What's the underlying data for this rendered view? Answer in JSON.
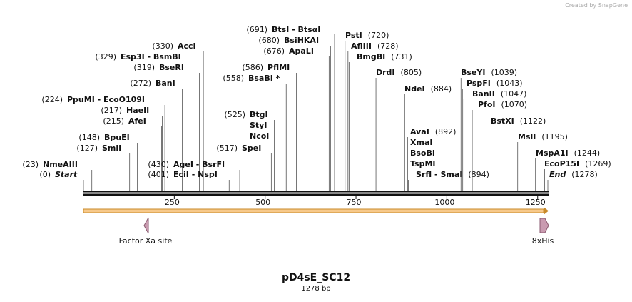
{
  "credit": "Created by SnapGene",
  "enzymes": [
    {
      "lines": [
        "Start"
      ],
      "site": {
        "value": 0,
        "label": "(0)"
      }
    },
    {
      "lines": [
        "NmeAIII"
      ],
      "site": {
        "value": 23,
        "label": "(23)"
      }
    },
    {
      "lines": [
        "SmlI"
      ],
      "site": {
        "value": 127,
        "label": "(127)"
      }
    },
    {
      "lines": [
        "BpuEI"
      ],
      "site": {
        "value": 148,
        "label": "(148)"
      }
    },
    {
      "lines": [
        "AfeI"
      ],
      "site": {
        "value": 215,
        "label": "(215)"
      }
    },
    {
      "lines": [
        "HaeII"
      ],
      "site": {
        "value": 217,
        "label": "(217)"
      }
    },
    {
      "lines": [
        "PpuMI  -  EcoO109I"
      ],
      "site": {
        "value": 224,
        "label": "(224)"
      }
    },
    {
      "lines": [
        "BanI"
      ],
      "site": {
        "value": 272,
        "label": "(272)"
      }
    },
    {
      "lines": [
        "BseRI"
      ],
      "site": {
        "value": 319,
        "label": "(319)"
      }
    },
    {
      "lines": [
        "Esp3I  -  BsmBI"
      ],
      "site": {
        "value": 329,
        "label": "(329)"
      }
    },
    {
      "lines": [
        "AccI"
      ],
      "site": {
        "value": 330,
        "label": "(330)"
      }
    },
    {
      "lines": [
        "AgeI  -  BsrFI"
      ],
      "site": {
        "value": 430,
        "label": "(430)"
      }
    },
    {
      "lines": [
        "EciI  -  NspI"
      ],
      "site": {
        "value": 401,
        "label": "(401)"
      }
    },
    {
      "lines": [
        "SpeI"
      ],
      "site": {
        "value": 517,
        "label": "(517)"
      }
    },
    {
      "lines": [
        "BtgI",
        "StyI",
        "NcoI"
      ],
      "site": {
        "value": 525,
        "label": "(525)"
      }
    },
    {
      "lines": [
        "BsaBI *"
      ],
      "site": {
        "value": 558,
        "label": "(558)"
      }
    },
    {
      "lines": [
        "PflMI"
      ],
      "site": {
        "value": 586,
        "label": "(586)"
      }
    },
    {
      "lines": [
        "ApaLI"
      ],
      "site": {
        "value": 676,
        "label": "(676)"
      }
    },
    {
      "lines": [
        "BsiHKAI"
      ],
      "site": {
        "value": 680,
        "label": "(680)"
      }
    },
    {
      "lines": [
        "BtsI  -  BtsαI"
      ],
      "site": {
        "value": 691,
        "label": "(691)"
      }
    },
    {
      "lines": [
        "PstI"
      ],
      "site": {
        "value": 720,
        "label": "(720)"
      }
    },
    {
      "lines": [
        "AflIII"
      ],
      "site": {
        "value": 728,
        "label": "(728)"
      }
    },
    {
      "lines": [
        "BmgBI"
      ],
      "site": {
        "value": 731,
        "label": "(731)"
      }
    },
    {
      "lines": [
        "DrdI"
      ],
      "site": {
        "value": 805,
        "label": "(805)"
      }
    },
    {
      "lines": [
        "NdeI"
      ],
      "site": {
        "value": 884,
        "label": "(884)"
      }
    },
    {
      "lines": [
        "AvaI",
        "XmaI",
        "BsoBI",
        "TspMI"
      ],
      "site": {
        "value": 892,
        "label": "(892)"
      }
    },
    {
      "lines": [
        "SrfI  -  SmaI"
      ],
      "site": {
        "value": 894,
        "label": "(894)"
      }
    },
    {
      "lines": [
        "BseYI"
      ],
      "site": {
        "value": 1039,
        "label": "(1039)"
      }
    },
    {
      "lines": [
        "PspFI"
      ],
      "site": {
        "value": 1043,
        "label": "(1043)"
      }
    },
    {
      "lines": [
        "BanII"
      ],
      "site": {
        "value": 1047,
        "label": "(1047)"
      }
    },
    {
      "lines": [
        "PfoI"
      ],
      "site": {
        "value": 1070,
        "label": "(1070)"
      }
    },
    {
      "lines": [
        "BstXI"
      ],
      "site": {
        "value": 1122,
        "label": "(1122)"
      }
    },
    {
      "lines": [
        "MslI"
      ],
      "site": {
        "value": 1195,
        "label": "(1195)"
      }
    },
    {
      "lines": [
        "MspA1I"
      ],
      "site": {
        "value": 1244,
        "label": "(1244)"
      }
    },
    {
      "lines": [
        "EcoP15I"
      ],
      "site": {
        "value": 1269,
        "label": "(1269)"
      }
    },
    {
      "lines": [
        "End"
      ],
      "site": {
        "value": 1278,
        "label": "(1278)"
      }
    }
  ],
  "ruler": [
    250,
    500,
    750,
    1000,
    1250
  ],
  "features": [
    {
      "name": "Factor Xa site"
    },
    {
      "name": "8xHis"
    }
  ],
  "plasmid": {
    "name": "pD4sE_SC12",
    "size": "1278 bp"
  }
}
